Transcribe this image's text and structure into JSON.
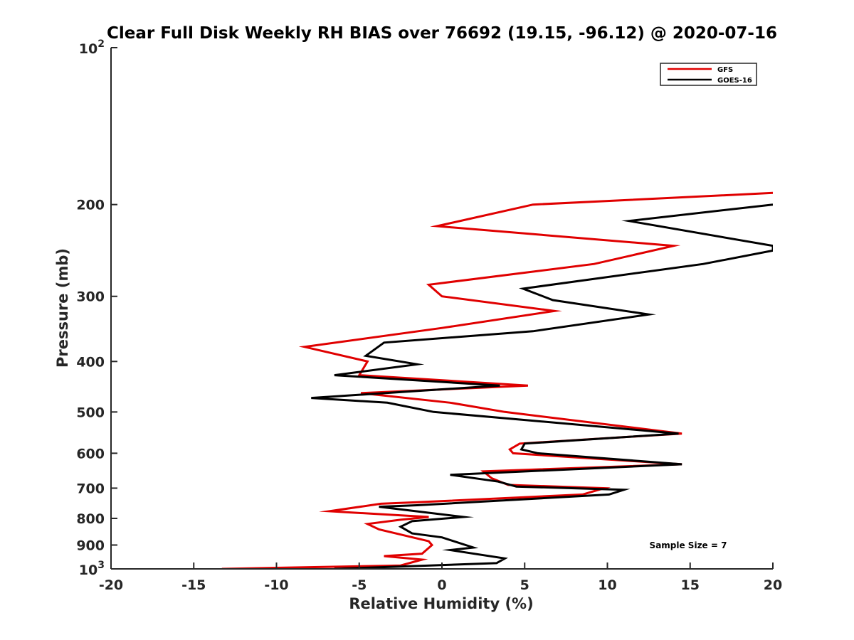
{
  "chart_data": {
    "type": "line",
    "title": "Clear Full Disk Weekly RH BIAS over 76692 (19.15, -96.12) @ 2020-07-16",
    "xlabel": "Relative Humidity (%)",
    "ylabel": "Pressure (mb)",
    "xlim": [
      -20,
      20
    ],
    "ylim": [
      100,
      1000
    ],
    "yscale": "log",
    "yreversed": true,
    "x_ticks": [
      "-20",
      "-15",
      "-10",
      "-5",
      "0",
      "5",
      "10",
      "15",
      "20"
    ],
    "y_ticks": [
      {
        "value": 100,
        "base": "10",
        "exp": "2"
      },
      {
        "value": 200,
        "label": "200"
      },
      {
        "value": 300,
        "label": "300"
      },
      {
        "value": 400,
        "label": "400"
      },
      {
        "value": 500,
        "label": "500"
      },
      {
        "value": 600,
        "label": "600"
      },
      {
        "value": 700,
        "label": "700"
      },
      {
        "value": 800,
        "label": "800"
      },
      {
        "value": 900,
        "label": "900"
      },
      {
        "value": 1000,
        "base": "10",
        "exp": "3"
      }
    ],
    "legend_position": "top-right",
    "annotation": "Sample Size = 7",
    "series": [
      {
        "name": "GFS",
        "color": "#e00000",
        "points": [
          [
            20,
            190
          ],
          [
            5.5,
            200
          ],
          [
            -0.3,
            220
          ],
          [
            14,
            240
          ],
          [
            9.2,
            260
          ],
          [
            -0.8,
            285
          ],
          [
            0,
            300
          ],
          [
            6.8,
            320
          ],
          [
            0,
            345
          ],
          [
            -8.3,
            375
          ],
          [
            -4.5,
            400
          ],
          [
            -5,
            425
          ],
          [
            5.2,
            445
          ],
          [
            -4.9,
            460
          ],
          [
            0.5,
            480
          ],
          [
            3.8,
            500
          ],
          [
            14.5,
            550
          ],
          [
            4.7,
            575
          ],
          [
            4.1,
            590
          ],
          [
            4.3,
            600
          ],
          [
            14.5,
            630
          ],
          [
            2.5,
            650
          ],
          [
            3,
            670
          ],
          [
            4,
            690
          ],
          [
            9.8,
            700
          ],
          [
            8.5,
            720
          ],
          [
            -1.5,
            745
          ],
          [
            -3.7,
            750
          ],
          [
            -6.8,
            775
          ],
          [
            -0.8,
            795
          ],
          [
            -2.5,
            805
          ],
          [
            -4.5,
            820
          ],
          [
            -3.8,
            840
          ],
          [
            -0.8,
            885
          ],
          [
            -0.6,
            900
          ],
          [
            -1.2,
            935
          ],
          [
            -3.5,
            945
          ],
          [
            -1.2,
            960
          ],
          [
            -2.5,
            985
          ],
          [
            -13.3,
            1000
          ],
          [
            -10,
            1020
          ]
        ]
      },
      {
        "name": "GOES-16",
        "color": "#000000",
        "points": [
          [
            20,
            200
          ],
          [
            11.3,
            215
          ],
          [
            20,
            240
          ],
          [
            20,
            245
          ],
          [
            15.8,
            260
          ],
          [
            4.9,
            290
          ],
          [
            6.7,
            305
          ],
          [
            12.5,
            325
          ],
          [
            5.5,
            350
          ],
          [
            -3.5,
            368
          ],
          [
            -4.6,
            390
          ],
          [
            -1.5,
            405
          ],
          [
            -6.5,
            425
          ],
          [
            3.5,
            445
          ],
          [
            -7.9,
            470
          ],
          [
            -3.3,
            480
          ],
          [
            -0.5,
            500
          ],
          [
            14.3,
            550
          ],
          [
            5,
            575
          ],
          [
            4.8,
            590
          ],
          [
            5.8,
            600
          ],
          [
            14.5,
            630
          ],
          [
            0.5,
            660
          ],
          [
            3.4,
            680
          ],
          [
            4.5,
            695
          ],
          [
            11,
            705
          ],
          [
            10.1,
            720
          ],
          [
            -1.5,
            755
          ],
          [
            -3.8,
            760
          ],
          [
            1.3,
            795
          ],
          [
            -1.8,
            810
          ],
          [
            -2.5,
            830
          ],
          [
            -1.8,
            855
          ],
          [
            0,
            870
          ],
          [
            1.9,
            910
          ],
          [
            0.5,
            920
          ],
          [
            3.8,
            955
          ],
          [
            3.3,
            975
          ],
          [
            -6.5,
            1000
          ],
          [
            -2.1,
            1020
          ]
        ]
      }
    ]
  }
}
